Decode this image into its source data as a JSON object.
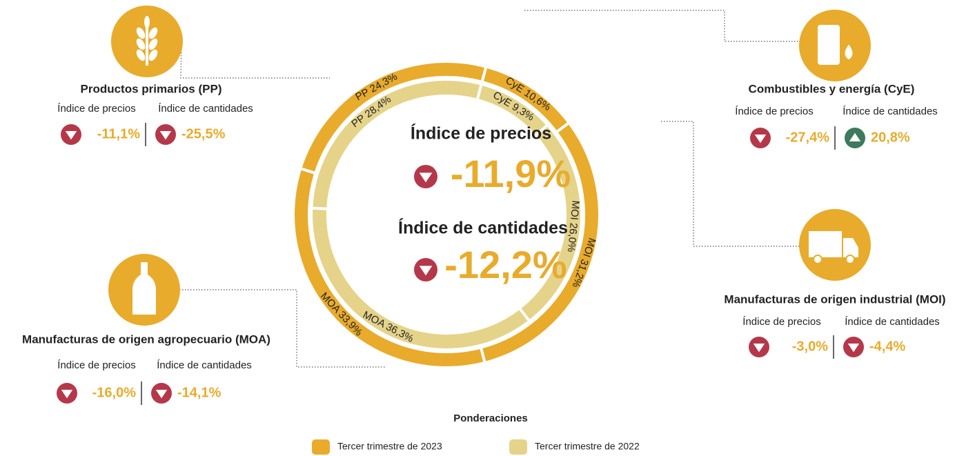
{
  "chart_data": {
    "type": "donut",
    "title": "Ponderaciones",
    "series": [
      {
        "name": "Tercer trimestre de 2023",
        "color": "#e8ab2c",
        "values": [
          10.6,
          31.2,
          33.9,
          24.3
        ],
        "value_labels": [
          "CyE 10,6%",
          "MOI 31,2%",
          "MOA 33,9%",
          "PP 24,3%"
        ]
      },
      {
        "name": "Tercer trimestre de 2022",
        "color": "#e5d38a",
        "values": [
          9.3,
          26.0,
          36.3,
          28.4
        ],
        "value_labels": [
          "CyE 9,3%",
          "MOI 26,0%",
          "MOA 36,3%",
          "PP 28,4%"
        ]
      }
    ]
  },
  "center": [
    {
      "label": "Índice de precios",
      "value": "-11,9%",
      "trend": "down"
    },
    {
      "label": "Índice de cantidades",
      "value": "-12,2%",
      "trend": "down"
    }
  ],
  "panels": [
    {
      "title": "Productos primarios (PP)",
      "price_label": "Índice de precios",
      "quantity_label": "Índice de cantidades",
      "price": {
        "value": "-11,1%",
        "trend": "down"
      },
      "quantity": {
        "value": "-25,5%",
        "trend": "down"
      }
    },
    {
      "title": "Combustibles y energía (CyE)",
      "price_label": "Índice de precios",
      "quantity_label": "Índice de cantidades",
      "price": {
        "value": "-27,4%",
        "trend": "down"
      },
      "quantity": {
        "value": "20,8%",
        "trend": "up"
      }
    },
    {
      "title": "Manufacturas de origen industrial (MOI)",
      "price_label": "Índice de precios",
      "quantity_label": "Índice de cantidades",
      "price": {
        "value": "-3,0%",
        "trend": "down"
      },
      "quantity": {
        "value": "-4,4%",
        "trend": "down"
      }
    },
    {
      "title": "Manufacturas de origen agropecuario (MOA)",
      "price_label": "Índice de precios",
      "quantity_label": "Índice de cantidades",
      "price": {
        "value": "-16,0%",
        "trend": "down"
      },
      "quantity": {
        "value": "-14,1%",
        "trend": "down"
      }
    }
  ]
}
